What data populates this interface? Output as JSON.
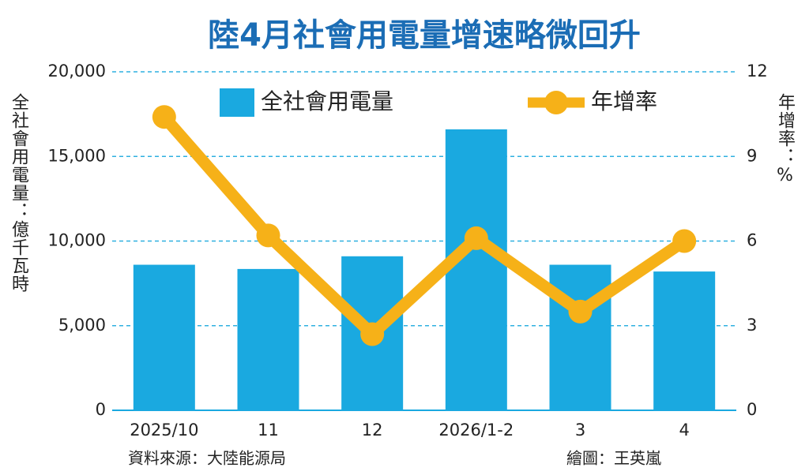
{
  "chart_data": {
    "type": "bar_line",
    "title": "陸4月社會用電量增速略微回升",
    "y_label": "全社會用電量：億千瓦時",
    "y2_label": "年增率：%",
    "source": "資料來源：大陸能源局",
    "credit": "繪圖：王英嵐",
    "categories": [
      "2025/10",
      "11",
      "12",
      "2026/1-2",
      "3",
      "4"
    ],
    "series": [
      {
        "name": "全社會用電量",
        "type": "bar",
        "color": "#1aa9e0",
        "values": [
          8600,
          8350,
          9100,
          16600,
          8600,
          8200
        ]
      },
      {
        "name": "年增率",
        "type": "line",
        "axis": "y2",
        "color": "#f6b118",
        "values": [
          10.4,
          6.2,
          2.7,
          6.1,
          3.5,
          6.0
        ]
      }
    ],
    "ylim": [
      0,
      20000
    ],
    "yticks": [
      0,
      {
        "value": 5000,
        "label": "5,000"
      },
      {
        "value": 10000,
        "label": "10,000"
      },
      {
        "value": 15000,
        "label": "15,000"
      },
      {
        "value": 20000,
        "label": "20,000"
      }
    ],
    "y2lim": [
      0,
      12
    ],
    "y2ticks": [
      0,
      3,
      6,
      9,
      12
    ],
    "grid": true
  }
}
